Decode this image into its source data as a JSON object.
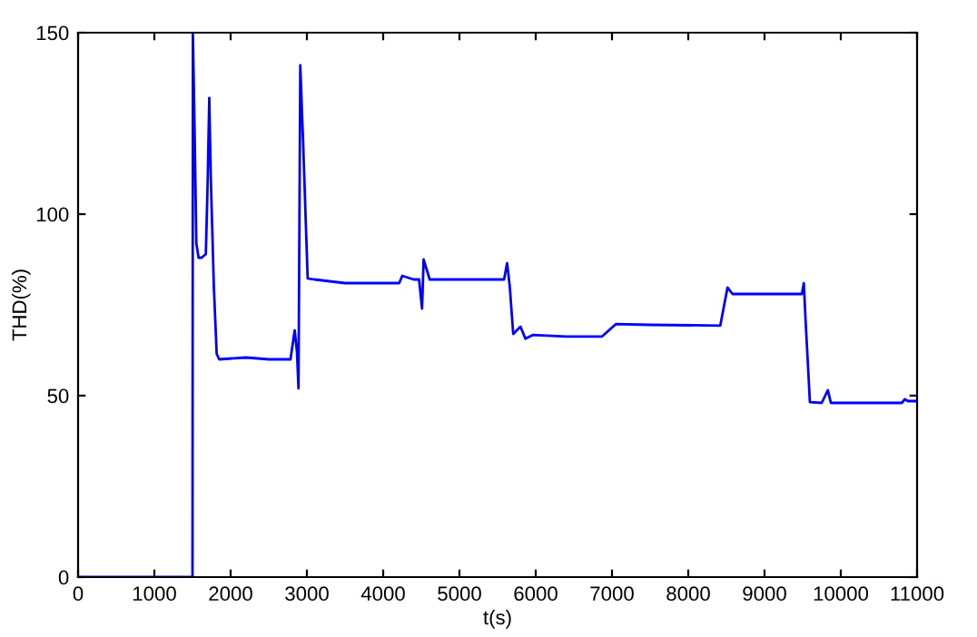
{
  "chart_data": {
    "type": "line",
    "xlabel": "t(s)",
    "ylabel": "THD(%)",
    "xlim": [
      0,
      11000
    ],
    "xticks": [
      0,
      1000,
      2000,
      3000,
      4000,
      5000,
      6000,
      7000,
      8000,
      9000,
      10000,
      11000
    ],
    "ylim": [
      0,
      150
    ],
    "yticks": [
      0,
      50,
      100,
      150
    ],
    "grid": false,
    "marker": "none",
    "line_style": "solid",
    "series": [
      {
        "color": "#0000ff",
        "x": [
          0,
          1500,
          1505,
          1530,
          1550,
          1580,
          1620,
          1675,
          1700,
          1720,
          1740,
          1780,
          1817,
          1850,
          2200,
          2500,
          2785,
          2840,
          2870,
          2890,
          2913,
          2950,
          3010,
          3100,
          3500,
          4210,
          4250,
          4400,
          4470,
          4510,
          4530,
          4610,
          5000,
          5585,
          5625,
          5660,
          5705,
          5800,
          5865,
          5960,
          6400,
          6870,
          7050,
          7500,
          8420,
          8515,
          8580,
          9000,
          9490,
          9515,
          9540,
          9595,
          9750,
          9830,
          9870,
          9910,
          10400,
          10800,
          10840,
          10880,
          11000
        ],
        "values": [
          0,
          0,
          150,
          120,
          92,
          88,
          88,
          89,
          110,
          132,
          110,
          80,
          61.5,
          60,
          60.5,
          60,
          60,
          68,
          62,
          52,
          141,
          120,
          82.3,
          82,
          81,
          81,
          83,
          82,
          82,
          74,
          87.5,
          82,
          82,
          82,
          86.5,
          80,
          67,
          69,
          65.7,
          66.7,
          66.3,
          66.3,
          69.7,
          69.5,
          69.3,
          79.8,
          78,
          78,
          78,
          81,
          70,
          48.2,
          48,
          51.5,
          48,
          48,
          48,
          48,
          49,
          48.5,
          48.5
        ]
      }
    ]
  }
}
